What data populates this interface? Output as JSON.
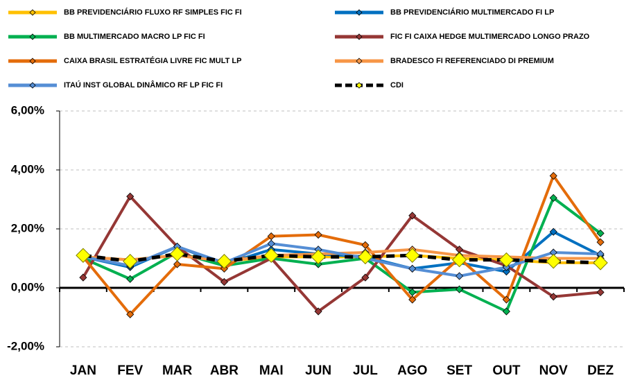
{
  "chart_data": {
    "type": "line",
    "categories": [
      "JAN",
      "FEV",
      "MAR",
      "ABR",
      "MAI",
      "JUN",
      "JUL",
      "AGO",
      "SET",
      "OUT",
      "NOV",
      "DEZ"
    ],
    "series": [
      {
        "name": "BB PREVIDENCIÁRIO FLUXO RF SIMPLES FIC FI",
        "color": "#ffc000",
        "values": [
          1.05,
          0.95,
          1.1,
          0.9,
          1.05,
          1.05,
          1.05,
          1.1,
          1.0,
          0.95,
          0.85,
          0.85
        ]
      },
      {
        "name": "BB PREVIDENCIÁRIO MULTIMERCADO FI LP",
        "color": "#0070c0",
        "values": [
          1.05,
          0.7,
          1.4,
          0.8,
          1.3,
          1.15,
          1.05,
          0.65,
          0.85,
          0.55,
          1.9,
          1.1
        ]
      },
      {
        "name": "BB MULTIMERCADO MACRO LP FIC FI",
        "color": "#00b050",
        "values": [
          1.0,
          0.3,
          1.2,
          0.75,
          1.0,
          0.8,
          1.0,
          -0.15,
          -0.05,
          -0.8,
          3.05,
          1.85
        ]
      },
      {
        "name": "FIC FI CAIXA HEDGE MULTIMERCADO LONGO PRAZO",
        "color": "#953735",
        "values": [
          0.35,
          3.1,
          1.4,
          0.2,
          1.0,
          -0.8,
          0.35,
          2.45,
          1.3,
          0.75,
          -0.3,
          -0.15
        ]
      },
      {
        "name": "CAIXA BRASIL ESTRATÉGIA LIVRE FIC MULT LP",
        "color": "#e46c0a",
        "values": [
          1.05,
          -0.9,
          0.8,
          0.65,
          1.75,
          1.8,
          1.45,
          -0.4,
          1.0,
          -0.4,
          3.8,
          1.55
        ]
      },
      {
        "name": "BRADESCO FI REFERENCIADO DI PREMIUM",
        "color": "#f79646",
        "values": [
          1.05,
          0.95,
          1.1,
          0.9,
          1.1,
          1.15,
          1.2,
          1.3,
          1.1,
          1.05,
          1.0,
          1.0
        ]
      },
      {
        "name": "ITAÚ INST GLOBAL DINÂMICO RF LP FIC FI",
        "color": "#558ed5",
        "values": [
          1.05,
          0.75,
          1.4,
          0.85,
          1.5,
          1.3,
          1.0,
          0.65,
          0.4,
          0.7,
          1.2,
          1.15
        ]
      },
      {
        "name": "CDI",
        "color": "#000000",
        "marker_color": "#ffff00",
        "dashed": true,
        "values": [
          1.1,
          0.9,
          1.15,
          0.9,
          1.1,
          1.05,
          1.05,
          1.1,
          0.95,
          0.95,
          0.9,
          0.85
        ]
      }
    ],
    "ylim": [
      -2,
      6
    ],
    "yticks": [
      {
        "value": -2,
        "label": "-2,00%"
      },
      {
        "value": 0,
        "label": "0,00%"
      },
      {
        "value": 2,
        "label": "2,00%"
      },
      {
        "value": 4,
        "label": "4,00%"
      },
      {
        "value": 6,
        "label": "6,00%"
      }
    ],
    "grid": true,
    "legend": "top"
  }
}
